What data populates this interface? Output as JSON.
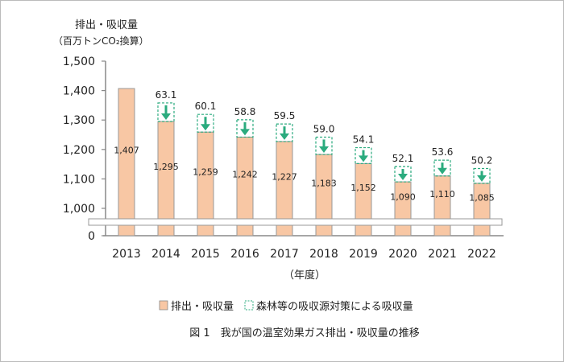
{
  "chart_data": {
    "type": "bar",
    "ylabel_line1": "排出・吸収量",
    "ylabel_line2": "（百万トンCO₂換算）",
    "xlabel": "（年度）",
    "caption": "図 1　我が国の温室効果ガス排出・吸収量の推移",
    "categories": [
      "2013",
      "2014",
      "2015",
      "2016",
      "2017",
      "2018",
      "2019",
      "2020",
      "2021",
      "2022"
    ],
    "series": [
      {
        "name": "排出・吸収量",
        "values": [
          1407,
          1295,
          1259,
          1242,
          1227,
          1183,
          1152,
          1090,
          1110,
          1085
        ],
        "labels": [
          "1,407",
          "1,295",
          "1,259",
          "1,242",
          "1,227",
          "1,183",
          "1,152",
          "1,090",
          "1,110",
          "1,085"
        ],
        "color": "#f8c7a4"
      },
      {
        "name": "森林等の吸収源対策による吸収量",
        "values": [
          null,
          63.1,
          60.1,
          58.8,
          59.5,
          59.0,
          54.1,
          52.1,
          53.6,
          50.2
        ],
        "labels": [
          "",
          "63.1",
          "60.1",
          "58.8",
          "59.5",
          "59.0",
          "54.1",
          "52.1",
          "53.6",
          "50.2"
        ],
        "color": "#2bab7e"
      }
    ],
    "yticks": [
      "0",
      "1,000",
      "1,100",
      "1,200",
      "1,300",
      "1,400",
      "1,500"
    ],
    "ylim": [
      1000,
      1500
    ],
    "axis_break": true,
    "legend_position": "bottom",
    "grid": false
  }
}
